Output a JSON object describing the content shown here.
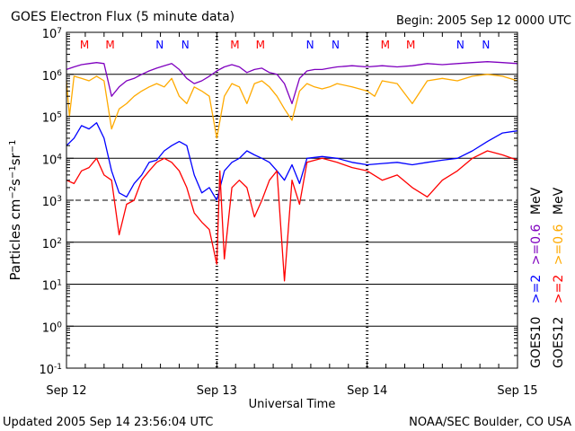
{
  "header": {
    "title": "GOES Electron Flux (5 minute data)",
    "begin": "Begin: 2005 Sep 12 0000 UTC"
  },
  "footer": {
    "updated": "Updated 2005 Sep 14 23:56:04 UTC",
    "credit": "NOAA/SEC Boulder, CO USA"
  },
  "colors": {
    "goes10_2mev": "#0000ff",
    "goes12_2mev": "#ff0000",
    "goes10_06mev": "#7f00bf",
    "goes12_06mev": "#ffaa00",
    "marker_m": "#ff0000",
    "marker_n": "#0000ff"
  },
  "chart_data": {
    "type": "line",
    "title": "GOES Electron Flux (5 minute data)",
    "xlabel": "Universal Time",
    "ylabel": "Particles cm⁻²s⁻¹sr⁻¹",
    "y_scale": "log",
    "ylim": [
      0.1,
      10000000
    ],
    "y_ticks": [
      {
        "base": "10",
        "exp": "-1"
      },
      {
        "base": "10",
        "exp": "0"
      },
      {
        "base": "10",
        "exp": "1"
      },
      {
        "base": "10",
        "exp": "2"
      },
      {
        "base": "10",
        "exp": "3"
      },
      {
        "base": "10",
        "exp": "4"
      },
      {
        "base": "10",
        "exp": "5"
      },
      {
        "base": "10",
        "exp": "6"
      },
      {
        "base": "10",
        "exp": "7"
      }
    ],
    "dashed_level": 1000,
    "grid": "solid horizontal lines at each decade except 10^3 (dashed); dotted vertical lines at day boundaries",
    "xlim_days": [
      0,
      3
    ],
    "x_ticks": [
      {
        "day": 0,
        "label": "Sep 12"
      },
      {
        "day": 1,
        "label": "Sep 13"
      },
      {
        "day": 2,
        "label": "Sep 14"
      },
      {
        "day": 3,
        "label": "Sep 15"
      }
    ],
    "markers": [
      {
        "day": 0.12,
        "letter": "M"
      },
      {
        "day": 0.29,
        "letter": "M"
      },
      {
        "day": 0.62,
        "letter": "N"
      },
      {
        "day": 0.79,
        "letter": "N"
      },
      {
        "day": 1.12,
        "letter": "M"
      },
      {
        "day": 1.29,
        "letter": "M"
      },
      {
        "day": 1.62,
        "letter": "N"
      },
      {
        "day": 1.79,
        "letter": "N"
      },
      {
        "day": 2.12,
        "letter": "M"
      },
      {
        "day": 2.29,
        "letter": "M"
      },
      {
        "day": 2.62,
        "letter": "N"
      },
      {
        "day": 2.79,
        "letter": "N"
      }
    ],
    "legend": {
      "placement": "right, rotated",
      "goes10_label": "GOES10",
      "goes12_label": "GOES12",
      "goes10_2": ">=2",
      "goes10_06": ">=0.6",
      "goes10_unit": "MeV",
      "goes12_2": ">=2",
      "goes12_06": ">=0.6",
      "goes12_unit": "MeV"
    },
    "series": [
      {
        "name": "GOES10 >=0.6 MeV",
        "color": "#7f00bf",
        "x_days": [
          0,
          0.05,
          0.1,
          0.15,
          0.2,
          0.25,
          0.3,
          0.35,
          0.4,
          0.45,
          0.5,
          0.55,
          0.6,
          0.65,
          0.7,
          0.75,
          0.8,
          0.85,
          0.9,
          0.95,
          1.0,
          1.05,
          1.1,
          1.15,
          1.2,
          1.25,
          1.3,
          1.35,
          1.4,
          1.45,
          1.5,
          1.55,
          1.6,
          1.65,
          1.7,
          1.75,
          1.8,
          1.9,
          2.0,
          2.1,
          2.2,
          2.3,
          2.4,
          2.5,
          2.6,
          2.7,
          2.8,
          2.9,
          3.0
        ],
        "values": [
          1300000,
          1500000,
          1700000,
          1800000,
          1900000,
          1800000,
          300000,
          500000,
          700000,
          800000,
          1000000,
          1200000,
          1400000,
          1600000,
          1800000,
          1300000,
          800000,
          600000,
          700000,
          900000,
          1200000,
          1500000,
          1700000,
          1500000,
          1100000,
          1300000,
          1400000,
          1100000,
          1000000,
          600000,
          200000,
          800000,
          1200000,
          1300000,
          1300000,
          1400000,
          1500000,
          1600000,
          1500000,
          1600000,
          1500000,
          1600000,
          1800000,
          1700000,
          1800000,
          1900000,
          2000000,
          1900000,
          1800000
        ]
      },
      {
        "name": "GOES12 >=0.6 MeV",
        "color": "#ffaa00",
        "x_days": [
          0,
          0.02,
          0.05,
          0.1,
          0.15,
          0.2,
          0.25,
          0.3,
          0.35,
          0.4,
          0.45,
          0.5,
          0.55,
          0.6,
          0.65,
          0.7,
          0.75,
          0.8,
          0.85,
          0.9,
          0.95,
          1.0,
          1.05,
          1.1,
          1.15,
          1.2,
          1.25,
          1.3,
          1.35,
          1.4,
          1.45,
          1.5,
          1.55,
          1.6,
          1.65,
          1.7,
          1.75,
          1.8,
          1.9,
          2.0,
          2.05,
          2.1,
          2.2,
          2.3,
          2.4,
          2.5,
          2.6,
          2.7,
          2.8,
          2.9,
          3.0
        ],
        "values": [
          700000,
          100000,
          900000,
          800000,
          700000,
          900000,
          700000,
          50000,
          150000,
          200000,
          300000,
          400000,
          500000,
          600000,
          500000,
          800000,
          300000,
          200000,
          500000,
          400000,
          300000,
          30000,
          300000,
          600000,
          500000,
          200000,
          600000,
          700000,
          500000,
          300000,
          150000,
          80000,
          400000,
          600000,
          500000,
          450000,
          500000,
          600000,
          500000,
          400000,
          300000,
          700000,
          600000,
          200000,
          700000,
          800000,
          700000,
          900000,
          1000000,
          900000,
          700000
        ]
      },
      {
        "name": "GOES10 >=2 MeV",
        "color": "#0000ff",
        "x_days": [
          0,
          0.05,
          0.1,
          0.15,
          0.2,
          0.25,
          0.3,
          0.35,
          0.4,
          0.45,
          0.5,
          0.55,
          0.6,
          0.65,
          0.7,
          0.75,
          0.8,
          0.85,
          0.9,
          0.95,
          1.0,
          1.05,
          1.1,
          1.15,
          1.2,
          1.25,
          1.3,
          1.35,
          1.4,
          1.45,
          1.5,
          1.55,
          1.6,
          1.7,
          1.8,
          1.9,
          2.0,
          2.1,
          2.2,
          2.3,
          2.4,
          2.5,
          2.6,
          2.7,
          2.8,
          2.9,
          3.0
        ],
        "values": [
          20000,
          30000,
          60000,
          50000,
          70000,
          30000,
          5000,
          1500,
          1200,
          2500,
          4000,
          8000,
          9000,
          15000,
          20000,
          25000,
          20000,
          4000,
          1500,
          2000,
          1000,
          5000,
          8000,
          10000,
          15000,
          12000,
          10000,
          8000,
          5000,
          3000,
          7000,
          2500,
          10000,
          11000,
          10000,
          8000,
          7000,
          7500,
          8000,
          7000,
          8000,
          9000,
          10000,
          15000,
          25000,
          40000,
          45000
        ]
      },
      {
        "name": "GOES12 >=2 MeV",
        "color": "#ff0000",
        "x_days": [
          0,
          0.05,
          0.1,
          0.15,
          0.2,
          0.25,
          0.3,
          0.35,
          0.4,
          0.45,
          0.5,
          0.55,
          0.6,
          0.65,
          0.7,
          0.75,
          0.8,
          0.85,
          0.9,
          0.95,
          1.0,
          1.02,
          1.05,
          1.1,
          1.15,
          1.2,
          1.25,
          1.3,
          1.35,
          1.4,
          1.45,
          1.5,
          1.55,
          1.6,
          1.7,
          1.8,
          1.9,
          2.0,
          2.1,
          2.2,
          2.3,
          2.4,
          2.5,
          2.6,
          2.7,
          2.8,
          2.9,
          3.0
        ],
        "values": [
          3000,
          2500,
          5000,
          6000,
          10000,
          4000,
          3000,
          150,
          800,
          1000,
          3000,
          5000,
          8000,
          10000,
          8000,
          5000,
          2000,
          500,
          300,
          200,
          30,
          5000,
          40,
          2000,
          3000,
          2000,
          400,
          1000,
          3000,
          5000,
          12,
          3000,
          800,
          8000,
          10000,
          8000,
          6000,
          5000,
          3000,
          4000,
          2000,
          1200,
          3000,
          5000,
          10000,
          15000,
          12000,
          9000
        ]
      }
    ]
  }
}
